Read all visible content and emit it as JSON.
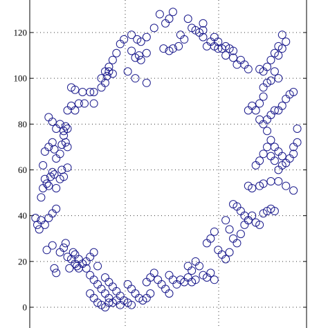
{
  "colors": {
    "marker": "#1a1a8c",
    "grid": "#333333",
    "axis": "#000000"
  },
  "chart_data": {
    "type": "scatter",
    "title": "",
    "xlabel": "",
    "ylabel": "",
    "marker": "open-circle",
    "grid": true,
    "ylim": [
      -6,
      135
    ],
    "xlim": [
      -5,
      140
    ],
    "yticks": [
      0,
      20,
      40,
      60,
      80,
      100,
      120
    ],
    "ytick_labels": [
      "0",
      "20",
      "40",
      "60",
      "80",
      "100",
      "120"
    ],
    "xgrid": [
      43,
      89,
      135
    ],
    "points": [
      [
        -1,
        39
      ],
      [
        0,
        36
      ],
      [
        1,
        34
      ],
      [
        2,
        38
      ],
      [
        4,
        36
      ],
      [
        6,
        39
      ],
      [
        8,
        41
      ],
      [
        10,
        43
      ],
      [
        5,
        25
      ],
      [
        8,
        27
      ],
      [
        9,
        17
      ],
      [
        10,
        15
      ],
      [
        12,
        24
      ],
      [
        14,
        26
      ],
      [
        15,
        28
      ],
      [
        16,
        22
      ],
      [
        17,
        17
      ],
      [
        18,
        21
      ],
      [
        19,
        24
      ],
      [
        20,
        19
      ],
      [
        21,
        18
      ],
      [
        22,
        17
      ],
      [
        2,
        48
      ],
      [
        3,
        52
      ],
      [
        4,
        56
      ],
      [
        5,
        54
      ],
      [
        6,
        53
      ],
      [
        7,
        57
      ],
      [
        8,
        59
      ],
      [
        9,
        58
      ],
      [
        10,
        52
      ],
      [
        12,
        56
      ],
      [
        13,
        60
      ],
      [
        14,
        57
      ],
      [
        16,
        61
      ],
      [
        3,
        62
      ],
      [
        4,
        68
      ],
      [
        6,
        70
      ],
      [
        8,
        72
      ],
      [
        9,
        69
      ],
      [
        10,
        65
      ],
      [
        12,
        67
      ],
      [
        13,
        71
      ],
      [
        14,
        75
      ],
      [
        15,
        72
      ],
      [
        16,
        70
      ],
      [
        6,
        83
      ],
      [
        8,
        81
      ],
      [
        10,
        78
      ],
      [
        12,
        80
      ],
      [
        14,
        77
      ],
      [
        15,
        79
      ],
      [
        16,
        78
      ],
      [
        16,
        86
      ],
      [
        18,
        88
      ],
      [
        20,
        86
      ],
      [
        22,
        89
      ],
      [
        25,
        89
      ],
      [
        30,
        89
      ],
      [
        18,
        96
      ],
      [
        20,
        95
      ],
      [
        24,
        94
      ],
      [
        28,
        94
      ],
      [
        30,
        94
      ],
      [
        34,
        96
      ],
      [
        36,
        98
      ],
      [
        37,
        101
      ],
      [
        38,
        103
      ],
      [
        40,
        102
      ],
      [
        34,
        100
      ],
      [
        36,
        103
      ],
      [
        38,
        105
      ],
      [
        40,
        108
      ],
      [
        42,
        111
      ],
      [
        44,
        115
      ],
      [
        46,
        117
      ],
      [
        50,
        112
      ],
      [
        52,
        109
      ],
      [
        54,
        110
      ],
      [
        55,
        108
      ],
      [
        58,
        111
      ],
      [
        50,
        119
      ],
      [
        53,
        117
      ],
      [
        55,
        116
      ],
      [
        58,
        118
      ],
      [
        62,
        122
      ],
      [
        65,
        128
      ],
      [
        67,
        113
      ],
      [
        70,
        112
      ],
      [
        72,
        113
      ],
      [
        75,
        114
      ],
      [
        78,
        117
      ],
      [
        68,
        124
      ],
      [
        70,
        126
      ],
      [
        72,
        129
      ],
      [
        76,
        119
      ],
      [
        80,
        126
      ],
      [
        82,
        122
      ],
      [
        84,
        121
      ],
      [
        86,
        120
      ],
      [
        88,
        118
      ],
      [
        88,
        124
      ],
      [
        90,
        114
      ],
      [
        92,
        116
      ],
      [
        94,
        118
      ],
      [
        96,
        116
      ],
      [
        98,
        113
      ],
      [
        100,
        110
      ],
      [
        104,
        112
      ],
      [
        106,
        106
      ],
      [
        48,
        103
      ],
      [
        52,
        100
      ],
      [
        58,
        98
      ],
      [
        88,
        121
      ],
      [
        94,
        114
      ],
      [
        96,
        113
      ],
      [
        100,
        114
      ],
      [
        102,
        113
      ],
      [
        104,
        109
      ],
      [
        108,
        108
      ],
      [
        110,
        106
      ],
      [
        112,
        104
      ],
      [
        118,
        104
      ],
      [
        120,
        103
      ],
      [
        122,
        105
      ],
      [
        124,
        108
      ],
      [
        126,
        111
      ],
      [
        128,
        114
      ],
      [
        130,
        119
      ],
      [
        132,
        116
      ],
      [
        130,
        113
      ],
      [
        128,
        110
      ],
      [
        126,
        103
      ],
      [
        128,
        100
      ],
      [
        124,
        99
      ],
      [
        122,
        98
      ],
      [
        120,
        96
      ],
      [
        120,
        92
      ],
      [
        118,
        89
      ],
      [
        116,
        86
      ],
      [
        114,
        88
      ],
      [
        112,
        86
      ],
      [
        118,
        82
      ],
      [
        120,
        80
      ],
      [
        122,
        82
      ],
      [
        124,
        84
      ],
      [
        126,
        86
      ],
      [
        128,
        86
      ],
      [
        130,
        88
      ],
      [
        132,
        91
      ],
      [
        134,
        93
      ],
      [
        136,
        94
      ],
      [
        122,
        77
      ],
      [
        124,
        73
      ],
      [
        126,
        70
      ],
      [
        128,
        68
      ],
      [
        130,
        66
      ],
      [
        132,
        63
      ],
      [
        134,
        65
      ],
      [
        136,
        67
      ],
      [
        136,
        70
      ],
      [
        138,
        72
      ],
      [
        138,
        78
      ],
      [
        116,
        62
      ],
      [
        118,
        64
      ],
      [
        120,
        67
      ],
      [
        122,
        70
      ],
      [
        124,
        66
      ],
      [
        126,
        64
      ],
      [
        128,
        60
      ],
      [
        130,
        62
      ],
      [
        112,
        53
      ],
      [
        114,
        52
      ],
      [
        118,
        53
      ],
      [
        120,
        54
      ],
      [
        124,
        55
      ],
      [
        128,
        55
      ],
      [
        132,
        53
      ],
      [
        136,
        51
      ],
      [
        104,
        45
      ],
      [
        106,
        44
      ],
      [
        108,
        42
      ],
      [
        110,
        40
      ],
      [
        112,
        38
      ],
      [
        114,
        40
      ],
      [
        116,
        37
      ],
      [
        118,
        36
      ],
      [
        120,
        41
      ],
      [
        122,
        42
      ],
      [
        124,
        43
      ],
      [
        126,
        42
      ],
      [
        100,
        38
      ],
      [
        102,
        34
      ],
      [
        104,
        30
      ],
      [
        106,
        28
      ],
      [
        108,
        32
      ],
      [
        110,
        36
      ],
      [
        112,
        38
      ],
      [
        90,
        28
      ],
      [
        92,
        30
      ],
      [
        94,
        33
      ],
      [
        96,
        25
      ],
      [
        98,
        23
      ],
      [
        100,
        21
      ],
      [
        102,
        24
      ],
      [
        80,
        18
      ],
      [
        82,
        16
      ],
      [
        84,
        20
      ],
      [
        86,
        18
      ],
      [
        88,
        14
      ],
      [
        90,
        13
      ],
      [
        92,
        15
      ],
      [
        94,
        12
      ],
      [
        70,
        14
      ],
      [
        72,
        12
      ],
      [
        74,
        10
      ],
      [
        76,
        12
      ],
      [
        78,
        11
      ],
      [
        80,
        13
      ],
      [
        82,
        11
      ],
      [
        84,
        12
      ],
      [
        58,
        11
      ],
      [
        60,
        13
      ],
      [
        62,
        15
      ],
      [
        64,
        12
      ],
      [
        66,
        10
      ],
      [
        68,
        8
      ],
      [
        70,
        6
      ],
      [
        48,
        10
      ],
      [
        50,
        8
      ],
      [
        52,
        6
      ],
      [
        54,
        4
      ],
      [
        56,
        3
      ],
      [
        58,
        4
      ],
      [
        60,
        6
      ],
      [
        36,
        13
      ],
      [
        38,
        11
      ],
      [
        40,
        9
      ],
      [
        42,
        7
      ],
      [
        44,
        5
      ],
      [
        46,
        3
      ],
      [
        48,
        2
      ],
      [
        50,
        1
      ],
      [
        26,
        17
      ],
      [
        28,
        14
      ],
      [
        30,
        12
      ],
      [
        32,
        10
      ],
      [
        34,
        8
      ],
      [
        36,
        6
      ],
      [
        38,
        4
      ],
      [
        40,
        2
      ],
      [
        28,
        6
      ],
      [
        30,
        4
      ],
      [
        32,
        2
      ],
      [
        34,
        1
      ],
      [
        36,
        0
      ],
      [
        38,
        2
      ],
      [
        42,
        3
      ],
      [
        44,
        1
      ],
      [
        20,
        23
      ],
      [
        22,
        21
      ],
      [
        24,
        19
      ],
      [
        26,
        20
      ],
      [
        28,
        22
      ],
      [
        30,
        24
      ],
      [
        32,
        18
      ]
    ]
  }
}
